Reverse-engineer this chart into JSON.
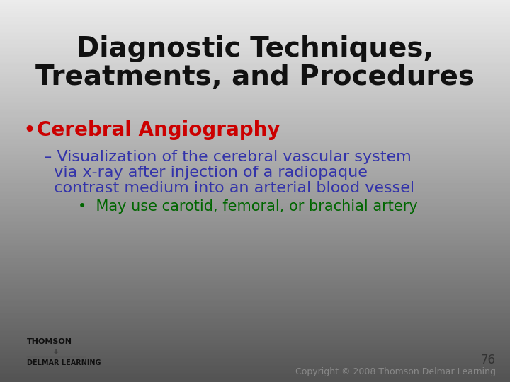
{
  "title_line1": "Diagnostic Techniques,",
  "title_line2": "Treatments, and Procedures",
  "title_color": "#111111",
  "title_fontsize": 28,
  "bg_color": "#d0d0d0",
  "bullet1_text": "Cerebral Angiography",
  "bullet1_color": "#cc0000",
  "bullet1_fontsize": 20,
  "bullet1_bullet_color": "#cc0000",
  "sub1_line1": "– Visualization of the cerebral vascular system",
  "sub1_line2": "  via x-ray after injection of a radiopaque",
  "sub1_line3": "  contrast medium into an arterial blood vessel",
  "sub1_color": "#3333aa",
  "sub1_fontsize": 16,
  "sub2_text": "•  May use carotid, femoral, or brachial artery",
  "sub2_color": "#006600",
  "sub2_fontsize": 15,
  "page_number": "76",
  "copyright_text": "Copyright © 2008 Thomson Delmar Learning",
  "footer_color": "#888888",
  "footer_fontsize": 9,
  "thomson_color": "#111111",
  "delmar_color": "#111111"
}
